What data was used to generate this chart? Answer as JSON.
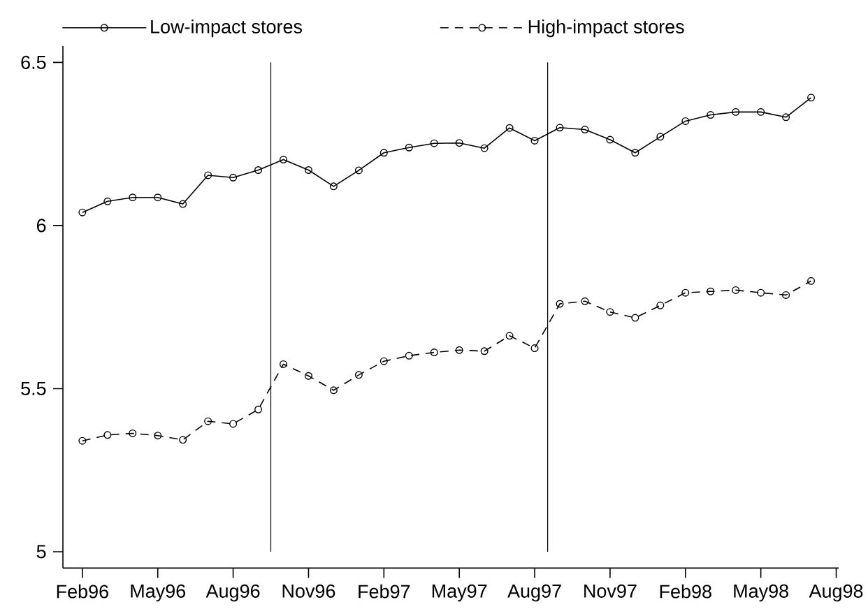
{
  "chart_data": {
    "type": "line",
    "x": [
      "1996-02",
      "1996-03",
      "1996-04",
      "1996-05",
      "1996-06",
      "1996-07",
      "1996-08",
      "1996-09",
      "1996-10",
      "1996-11",
      "1996-12",
      "1997-01",
      "1997-02",
      "1997-03",
      "1997-04",
      "1997-05",
      "1997-06",
      "1997-07",
      "1997-08",
      "1997-09",
      "1997-10",
      "1997-11",
      "1997-12",
      "1998-01",
      "1998-02",
      "1998-03",
      "1998-04",
      "1998-05",
      "1998-06",
      "1998-07"
    ],
    "series": [
      {
        "name": "Low-impact stores",
        "color": "#000000",
        "line_style": "solid",
        "values": [
          6.04,
          6.074,
          6.086,
          6.086,
          6.066,
          6.154,
          6.147,
          6.17,
          6.202,
          6.17,
          6.12,
          6.169,
          6.223,
          6.239,
          6.252,
          6.253,
          6.237,
          6.299,
          6.26,
          6.3,
          6.294,
          6.263,
          6.223,
          6.272,
          6.32,
          6.339,
          6.348,
          6.348,
          6.332,
          6.392
        ]
      },
      {
        "name": "High-impact stores",
        "color": "#000000",
        "line_style": "dashed",
        "values": [
          5.34,
          5.358,
          5.363,
          5.356,
          5.343,
          5.4,
          5.392,
          5.436,
          5.575,
          5.539,
          5.495,
          5.542,
          5.584,
          5.601,
          5.611,
          5.618,
          5.615,
          5.662,
          5.624,
          5.76,
          5.768,
          5.735,
          5.717,
          5.755,
          5.794,
          5.798,
          5.802,
          5.794,
          5.787,
          5.83
        ]
      }
    ],
    "xlim": [
      "1996-01-08",
      "1998-08-04"
    ],
    "xticks": [
      {
        "value": "1996-02",
        "label": "Feb96"
      },
      {
        "value": "1996-05",
        "label": "May96"
      },
      {
        "value": "1996-08",
        "label": "Aug96"
      },
      {
        "value": "1996-11",
        "label": "Nov96"
      },
      {
        "value": "1997-02",
        "label": "Feb97"
      },
      {
        "value": "1997-05",
        "label": "May97"
      },
      {
        "value": "1997-08",
        "label": "Aug97"
      },
      {
        "value": "1997-11",
        "label": "Nov97"
      },
      {
        "value": "1998-02",
        "label": "Feb98"
      },
      {
        "value": "1998-05",
        "label": "May98"
      },
      {
        "value": "1998-08",
        "label": "Aug98"
      }
    ],
    "ylim": [
      4.95,
      6.55
    ],
    "yticks": [
      5,
      5.5,
      6,
      6.5
    ],
    "marker": "circle",
    "legend": "top",
    "ref_lines": [
      {
        "axis": "x",
        "value": "1996-09-16",
        "color": "#000000"
      },
      {
        "axis": "x",
        "value": "1997-08-17",
        "color": "#000000"
      }
    ]
  }
}
